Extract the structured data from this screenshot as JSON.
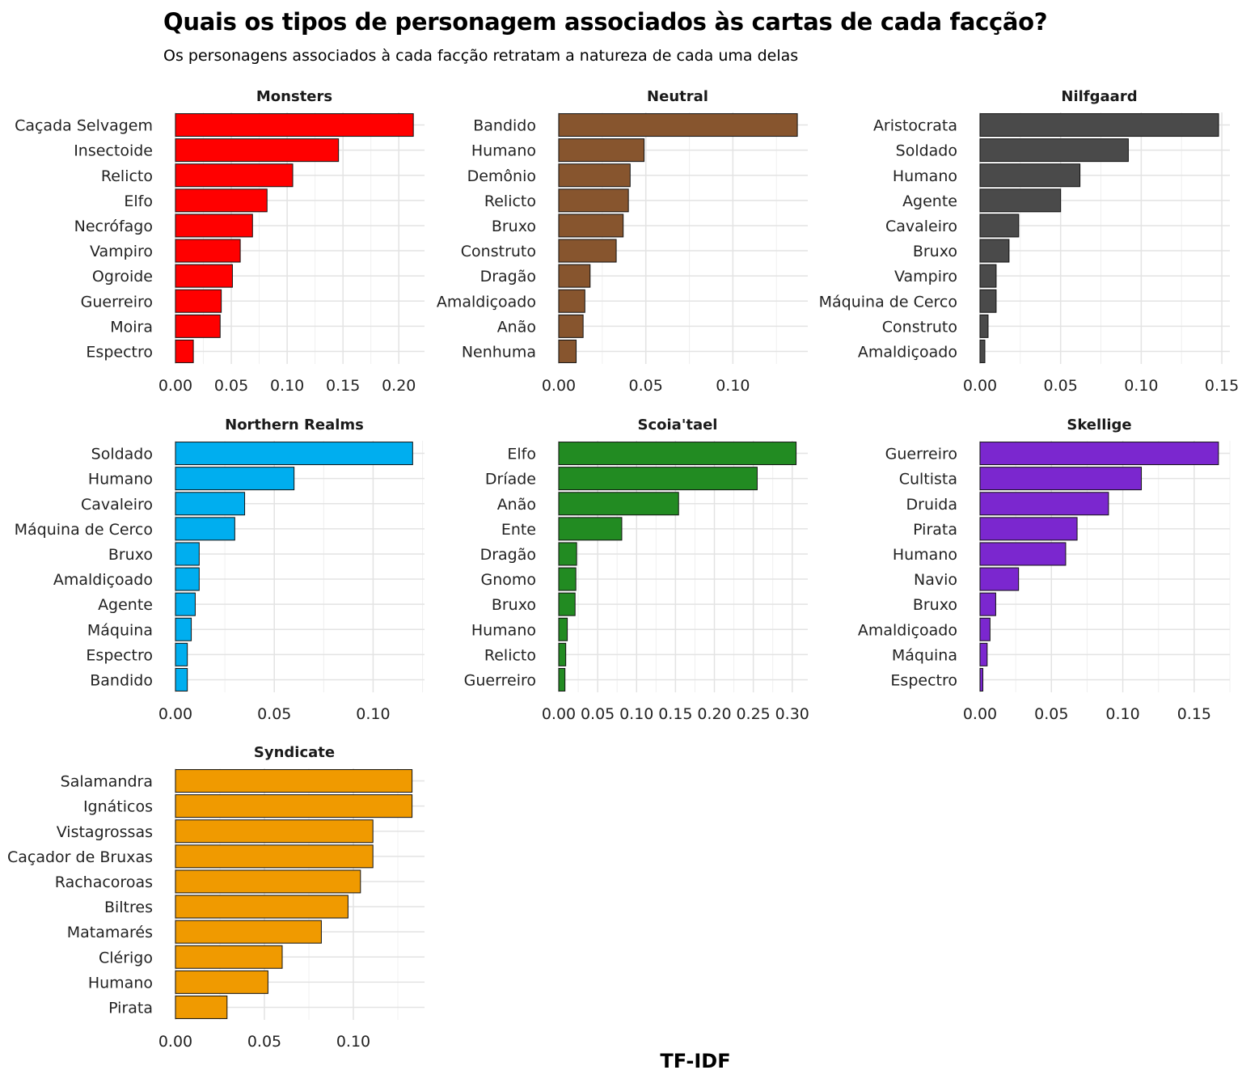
{
  "title": "Quais os tipos de personagem associados às cartas de cada facção?",
  "subtitle": "Os personagens associados à cada facção retratam a natureza de cada uma delas",
  "x_axis_title": "TF-IDF",
  "chart_data": [
    {
      "type": "bar",
      "orientation": "horizontal",
      "facet": "Monsters",
      "color": "#ff0000",
      "categories": [
        "Caçada Selvagem",
        "Insectoide",
        "Relicto",
        "Elfo",
        "Necrófago",
        "Vampiro",
        "Ogroide",
        "Guerreiro",
        "Moira",
        "Espectro"
      ],
      "values": [
        0.213,
        0.146,
        0.105,
        0.082,
        0.069,
        0.058,
        0.051,
        0.041,
        0.04,
        0.016
      ],
      "xlim": [
        0,
        0.223
      ],
      "xticks": [
        0.0,
        0.05,
        0.1,
        0.15,
        0.2
      ],
      "xtick_labels": [
        "0.00",
        "0.05",
        "0.10",
        "0.15",
        "0.20"
      ]
    },
    {
      "type": "bar",
      "orientation": "horizontal",
      "facet": "Neutral",
      "color": "#87552e",
      "categories": [
        "Bandido",
        "Humano",
        "Demônio",
        "Relicto",
        "Bruxo",
        "Construto",
        "Dragão",
        "Amaldiçoado",
        "Anão",
        "Nenhuma"
      ],
      "values": [
        0.137,
        0.049,
        0.041,
        0.04,
        0.037,
        0.033,
        0.018,
        0.015,
        0.014,
        0.01
      ],
      "xlim": [
        0,
        0.143
      ],
      "xticks": [
        0.0,
        0.05,
        0.1
      ],
      "xtick_labels": [
        "0.00",
        "0.05",
        "0.10"
      ]
    },
    {
      "type": "bar",
      "orientation": "horizontal",
      "facet": "Nilfgaard",
      "color": "#4a4a4a",
      "categories": [
        "Aristocrata",
        "Soldado",
        "Humano",
        "Agente",
        "Cavaleiro",
        "Bruxo",
        "Vampiro",
        "Máquina de Cerco",
        "Construto",
        "Amaldiçoado"
      ],
      "values": [
        0.148,
        0.092,
        0.062,
        0.05,
        0.024,
        0.018,
        0.01,
        0.01,
        0.005,
        0.003
      ],
      "xlim": [
        0,
        0.155
      ],
      "xticks": [
        0.0,
        0.05,
        0.1,
        0.15
      ],
      "xtick_labels": [
        "0.00",
        "0.05",
        "0.10",
        "0.15"
      ]
    },
    {
      "type": "bar",
      "orientation": "horizontal",
      "facet": "Northern Realms",
      "color": "#00aeef",
      "categories": [
        "Soldado",
        "Humano",
        "Cavaleiro",
        "Máquina de Cerco",
        "Bruxo",
        "Amaldiçoado",
        "Agente",
        "Máquina",
        "Espectro",
        "Bandido"
      ],
      "values": [
        0.12,
        0.06,
        0.035,
        0.03,
        0.012,
        0.012,
        0.01,
        0.008,
        0.006,
        0.006
      ],
      "xlim": [
        0,
        0.126
      ],
      "xticks": [
        0.0,
        0.05,
        0.1
      ],
      "xtick_labels": [
        "0.00",
        "0.05",
        "0.10"
      ]
    },
    {
      "type": "bar",
      "orientation": "horizontal",
      "facet": "Scoia'tael",
      "color": "#228b22",
      "categories": [
        "Elfo",
        "Dríade",
        "Anão",
        "Ente",
        "Dragão",
        "Gnomo",
        "Bruxo",
        "Humano",
        "Relicto",
        "Guerreiro"
      ],
      "values": [
        0.305,
        0.255,
        0.154,
        0.081,
        0.023,
        0.022,
        0.021,
        0.011,
        0.009,
        0.008
      ],
      "xlim": [
        0,
        0.32
      ],
      "xticks": [
        0.0,
        0.05,
        0.1,
        0.15,
        0.2,
        0.25,
        0.3
      ],
      "xtick_labels": [
        "0.00",
        "0.05",
        "0.10",
        "0.15",
        "0.20",
        "0.25",
        "0.30"
      ]
    },
    {
      "type": "bar",
      "orientation": "horizontal",
      "facet": "Skellige",
      "color": "#7b27cf",
      "categories": [
        "Guerreiro",
        "Cultista",
        "Druida",
        "Pirata",
        "Humano",
        "Navio",
        "Bruxo",
        "Amaldiçoado",
        "Máquina",
        "Espectro"
      ],
      "values": [
        0.167,
        0.113,
        0.09,
        0.068,
        0.06,
        0.027,
        0.011,
        0.007,
        0.005,
        0.002
      ],
      "xlim": [
        0,
        0.175
      ],
      "xticks": [
        0.0,
        0.05,
        0.1,
        0.15
      ],
      "xtick_labels": [
        "0.00",
        "0.05",
        "0.10",
        "0.15"
      ]
    },
    {
      "type": "bar",
      "orientation": "horizontal",
      "facet": "Syndicate",
      "color": "#f09a00",
      "categories": [
        "Salamandra",
        "Ignáticos",
        "Vistagrossas",
        "Caçador de Bruxas",
        "Rachacoroas",
        "Biltres",
        "Matamarés",
        "Clérigo",
        "Humano",
        "Pirata"
      ],
      "values": [
        0.133,
        0.133,
        0.111,
        0.111,
        0.104,
        0.097,
        0.082,
        0.06,
        0.052,
        0.029
      ],
      "xlim": [
        0,
        0.14
      ],
      "xticks": [
        0.0,
        0.05,
        0.1
      ],
      "xtick_labels": [
        "0.00",
        "0.05",
        "0.10"
      ]
    }
  ]
}
